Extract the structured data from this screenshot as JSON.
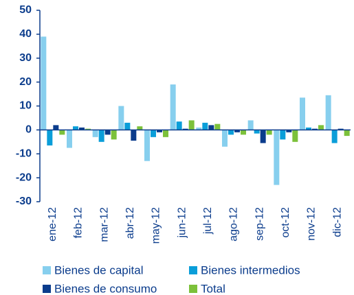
{
  "chart_data": {
    "type": "bar",
    "categories": [
      "ene-12",
      "feb-12",
      "mar-12",
      "abr-12",
      "may-12",
      "jun-12",
      "jul-12",
      "ago-12",
      "sep-12",
      "oct-12",
      "nov-12",
      "dic-12"
    ],
    "series": [
      {
        "name": "Bienes de capital",
        "color": "#87cfee",
        "values": [
          39,
          -7.5,
          -3,
          10,
          -13,
          19,
          1,
          -7,
          4,
          -23,
          13.5,
          14.5
        ]
      },
      {
        "name": "Bienes intermedios",
        "color": "#0a9ed9",
        "values": [
          -6.5,
          1.5,
          -5,
          3,
          -3,
          3.5,
          3,
          -2,
          -1.5,
          -4,
          1,
          -5.5
        ]
      },
      {
        "name": "Bienes de consumo",
        "color": "#0b3c8c",
        "values": [
          2,
          1,
          -2,
          -4.5,
          -1,
          0.5,
          2,
          -1,
          -5.5,
          -1,
          0.5,
          0.5
        ]
      },
      {
        "name": "Total",
        "color": "#7cc13a",
        "values": [
          -2,
          0.5,
          -4,
          1.5,
          -3,
          4,
          2.5,
          -2,
          -2,
          -5,
          2,
          -2.5
        ]
      }
    ],
    "ylim": [
      -30,
      50
    ],
    "yticks": [
      -30,
      -20,
      -10,
      0,
      10,
      20,
      30,
      40,
      50
    ],
    "grid": false,
    "legend": "bottom"
  }
}
